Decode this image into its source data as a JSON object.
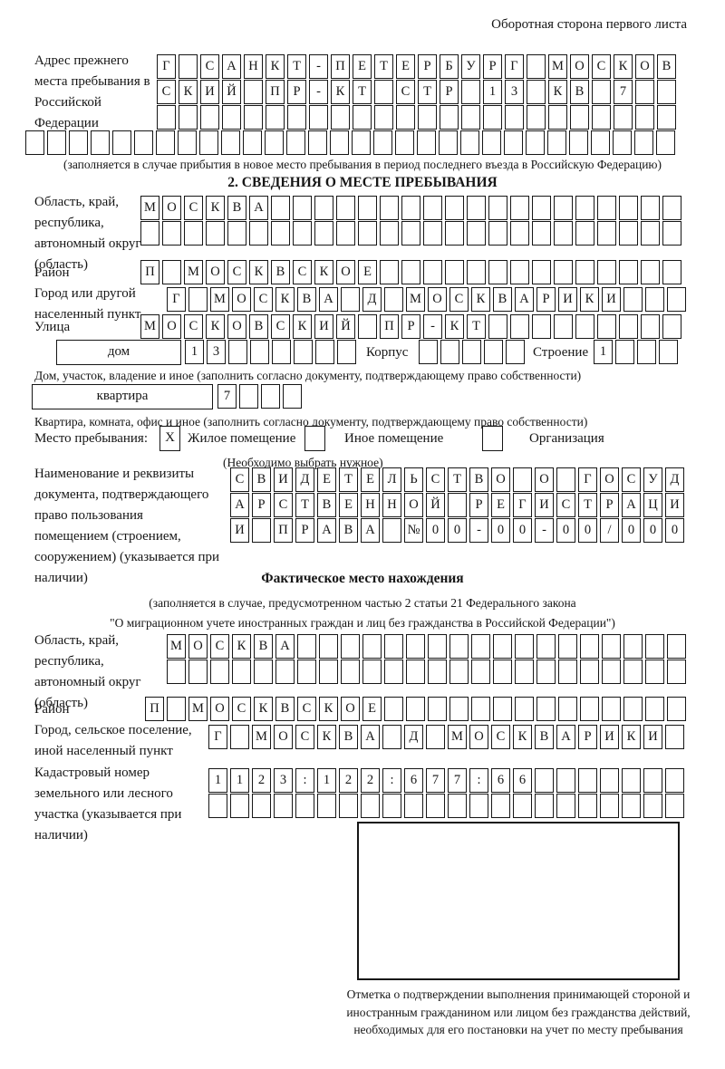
{
  "colors": {
    "ink": "#161616",
    "paper": "#ffffff"
  },
  "page": {
    "back_title": "Оборотная сторона первого листа"
  },
  "prev_address": {
    "label": "Адрес прежнего места пребывания в Российской Федерации",
    "rows": [
      {
        "t": "Г САНКТ-ПЕТЕРБУРГ МОСКОВ",
        "n": 24
      },
      {
        "t": "СКИЙ ПР-КТ СТР 13 КВ 7",
        "n": 24
      },
      {
        "t": "",
        "n": 24
      },
      {
        "t": "",
        "n": 30
      }
    ],
    "note": "(заполняется в случае прибытия в новое место пребывания в период последнего въезда в Российскую Федерацию)"
  },
  "section2": {
    "title": "2. СВЕДЕНИЯ О МЕСТЕ ПРЕБЫВАНИЯ",
    "region": {
      "label": "Область, край, республика, автономный округ (область)",
      "rows": [
        {
          "t": "МОСКВА",
          "n": 25
        },
        {
          "t": "",
          "n": 25
        }
      ]
    },
    "district": {
      "label": "Район",
      "row": {
        "t": "П МОСКВСКОЕ",
        "n": 25
      }
    },
    "city": {
      "label": "Город или другой населенный пункт",
      "row": {
        "t": "Г МОСКВА Д МОСКВАРИКИ",
        "n": 24
      }
    },
    "street": {
      "label": "Улица",
      "row": {
        "t": "МОСКОВСКИЙ ПР-КТ",
        "n": 25
      }
    },
    "house": {
      "type_label": "дом",
      "cells": {
        "t": "13",
        "n": 8
      },
      "korpus_label": "Корпус",
      "korpus_cells": {
        "t": "",
        "n": 5
      },
      "stroenie_label": "Строение",
      "stroenie_cells": {
        "t": "1",
        "n": 4
      },
      "note": "Дом, участок, владение и иное (заполнить согласно документу, подтверждающему право собственности)"
    },
    "apartment": {
      "type_label": "квартира",
      "cells": {
        "t": "7",
        "n": 4
      },
      "note": "Квартира, комната, офис и иное (заполнить согласно документу, подтверждающему право собственности)"
    },
    "stay_type": {
      "label": "Место пребывания:",
      "options": [
        {
          "mark": "X",
          "label": "Жилое помещение"
        },
        {
          "mark": "",
          "label": "Иное помещение"
        },
        {
          "mark": "",
          "label": "Организация"
        }
      ],
      "note": "(Необходимо выбрать нужное)"
    },
    "document": {
      "label": "Наименование и реквизиты документа, подтверждающего право пользования помещением (строением, сооружением) (указывается при наличии)",
      "rows": [
        {
          "t": "СВИДЕТЕЛЬСТВО О ГОСУД",
          "n": 21
        },
        {
          "t": "АРСТВЕННОЙ РЕГИСТРАЦИ",
          "n": 21
        },
        {
          "t": "И ПРАВА №00-00-00/000",
          "n": 21
        }
      ]
    }
  },
  "actual_location": {
    "title": "Фактическое место нахождения",
    "note_line1": "(заполняется в случае, предусмотренном частью 2 статьи 21 Федерального закона",
    "note_line2": "\"О миграционном учете иностранных граждан и лиц без гражданства в Российской Федерации\")",
    "region": {
      "label": "Область, край, республика, автономный округ (область)",
      "rows": [
        {
          "t": "МОСКВА",
          "n": 24
        },
        {
          "t": "",
          "n": 24
        }
      ]
    },
    "district": {
      "label": "Район",
      "row": {
        "t": "П МОСКВСКОЕ",
        "n": 25
      }
    },
    "city": {
      "label": "Город, сельское поселение, иной населенный пункт",
      "row": {
        "t": "Г МОСКВА Д МОСКВАРИКИ",
        "n": 22
      }
    },
    "cadastral": {
      "label": "Кадастровый номер земельного или лесного участка (указывается при наличии)",
      "rows": [
        {
          "t": "1123:122:677:66",
          "n": 22
        },
        {
          "t": "",
          "n": 22
        }
      ]
    },
    "stamp_note": "Отметка о подтверждении выполнения принимающей стороной и иностранным гражданином или лицом без гражданства действий, необходимых для его постановки на учет по месту пребывания"
  }
}
